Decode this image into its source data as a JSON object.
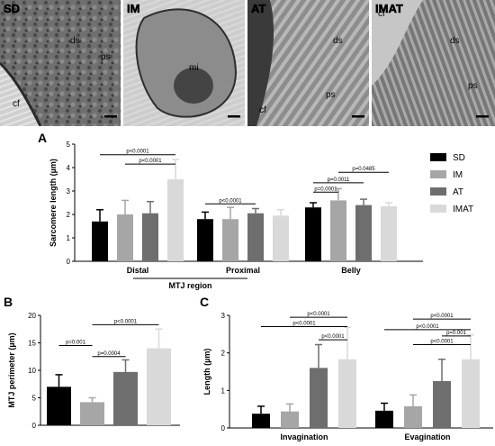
{
  "micrographs": {
    "panels": [
      {
        "label": "SD",
        "annotations": [
          "ds",
          "ps",
          "cf"
        ]
      },
      {
        "label": "IM",
        "annotations": [
          "mi"
        ]
      },
      {
        "label": "AT",
        "annotations": [
          "ds",
          "ps",
          "cf"
        ]
      },
      {
        "label": "IMAT",
        "annotations": [
          "cf",
          "ds",
          "ps"
        ]
      }
    ]
  },
  "groups": [
    {
      "name": "SD",
      "color": "#000000"
    },
    {
      "name": "IM",
      "color": "#a6a6a6"
    },
    {
      "name": "AT",
      "color": "#6e6e6e"
    },
    {
      "name": "IMAT",
      "color": "#d9d9d9"
    }
  ],
  "chart_data": [
    {
      "panel": "A",
      "type": "bar",
      "categories": [
        "Distal",
        "Proximal",
        "Belly"
      ],
      "category_group_label": "MTJ region",
      "ylabel": "Sarcomere length (µm)",
      "ylim": [
        0,
        5
      ],
      "yticks": [
        0,
        1,
        2,
        3,
        4,
        5
      ],
      "legend": "right",
      "series": [
        {
          "name": "SD",
          "values": [
            1.7,
            1.8,
            2.3
          ],
          "errors": [
            0.5,
            0.3,
            0.2
          ]
        },
        {
          "name": "IM",
          "values": [
            2.0,
            1.8,
            2.6
          ],
          "errors": [
            0.6,
            0.5,
            0.5
          ]
        },
        {
          "name": "AT",
          "values": [
            2.05,
            2.05,
            2.4
          ],
          "errors": [
            0.5,
            0.2,
            0.25
          ]
        },
        {
          "name": "IMAT",
          "values": [
            3.5,
            1.95,
            2.35
          ],
          "errors": [
            0.85,
            0.25,
            0.15
          ]
        }
      ],
      "significance": [
        {
          "label": "p<0.0001",
          "cat": 0,
          "from": 0,
          "to": 3,
          "y": 4.55
        },
        {
          "label": "p<0.0001",
          "cat": 0,
          "from": 1,
          "to": 3,
          "y": 4.15
        },
        {
          "label": "p<0.0001",
          "cat": 1,
          "from": 0,
          "to": 2,
          "y": 2.45
        },
        {
          "label": "p=0.0485",
          "cat": 2,
          "from": 1,
          "to": 3,
          "y": 3.8
        },
        {
          "label": "p=0.0011",
          "cat": 2,
          "from": 0,
          "to": 2,
          "y": 3.35
        },
        {
          "label": "p=0.0001",
          "cat": 2,
          "from": 0,
          "to": 1,
          "y": 2.95
        }
      ]
    },
    {
      "panel": "B",
      "type": "bar",
      "categories": [
        "SD",
        "IM",
        "AT",
        "IMAT"
      ],
      "ylabel": "MTJ perimeter (µm)",
      "ylim": [
        0,
        20
      ],
      "yticks": [
        0,
        5,
        10,
        15,
        20
      ],
      "values": [
        7.0,
        4.2,
        9.7,
        14.0
      ],
      "errors": [
        2.2,
        0.8,
        2.2,
        3.5
      ],
      "significance": [
        {
          "label": "p<0.0001",
          "from": 1,
          "to": 3,
          "y": 18.3
        },
        {
          "label": "p=0.001",
          "from": 0,
          "to": 1,
          "y": 14.5
        },
        {
          "label": "p=0.0004",
          "from": 1,
          "to": 2,
          "y": 12.5
        }
      ]
    },
    {
      "panel": "C",
      "type": "bar",
      "categories": [
        "Invagination",
        "Evagination"
      ],
      "ylabel": "Length (µm)",
      "ylim": [
        0,
        3
      ],
      "yticks": [
        0,
        1,
        2,
        3
      ],
      "series": [
        {
          "name": "SD",
          "values": [
            0.38,
            0.46
          ],
          "errors": [
            0.2,
            0.2
          ]
        },
        {
          "name": "IM",
          "values": [
            0.44,
            0.58
          ],
          "errors": [
            0.2,
            0.3
          ]
        },
        {
          "name": "AT",
          "values": [
            1.6,
            1.25
          ],
          "errors": [
            0.62,
            0.58
          ]
        },
        {
          "name": "IMAT",
          "values": [
            1.83,
            1.83
          ],
          "errors": [
            0.85,
            0.65
          ]
        }
      ],
      "significance": [
        {
          "label": "p<0.0001",
          "cat": 0,
          "from": 1,
          "to": 3,
          "y": 2.95
        },
        {
          "label": "p<0.0001",
          "cat": 0,
          "from": 0,
          "to": 3,
          "y": 2.7
        },
        {
          "label": "p<0.0001",
          "cat": 0,
          "from": 2,
          "to": 3,
          "y": 2.35
        },
        {
          "label": "p<0.0001",
          "cat": 1,
          "from": 1,
          "to": 3,
          "y": 2.9
        },
        {
          "label": "p<0.0001",
          "cat": 1,
          "from": 0,
          "to": 3,
          "y": 2.62
        },
        {
          "label": "p=0.001",
          "cat": 1,
          "from": 2,
          "to": 3,
          "y": 2.45
        },
        {
          "label": "p<0.0001",
          "cat": 1,
          "from": 1,
          "to": 3,
          "y": 2.22
        }
      ]
    }
  ]
}
